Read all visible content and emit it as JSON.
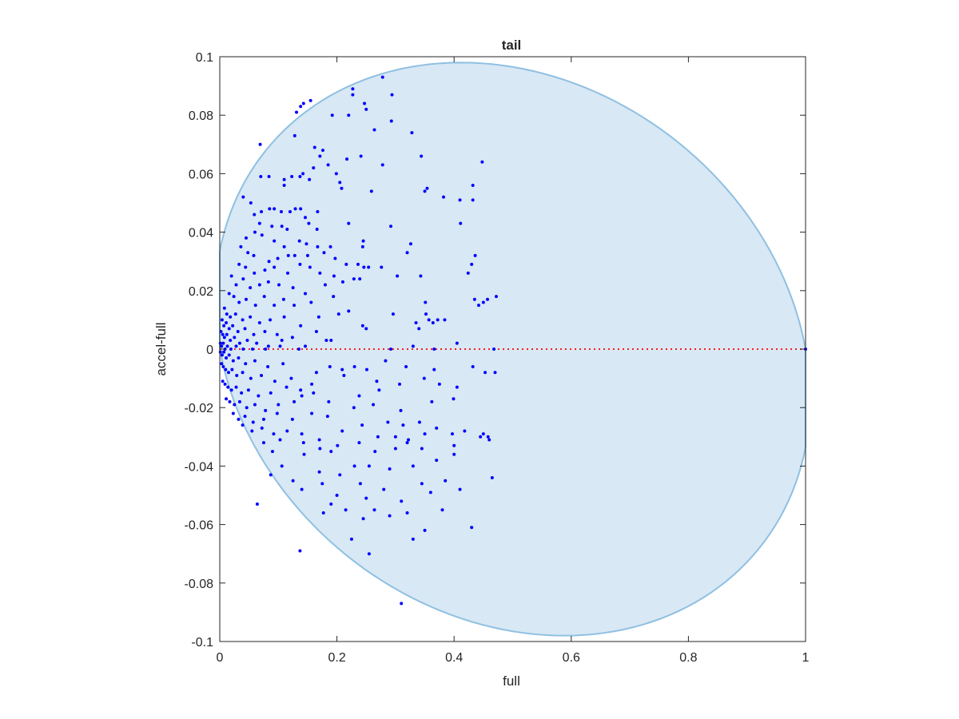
{
  "chart_data": {
    "type": "scatter",
    "title": "tail",
    "xlabel": "full",
    "ylabel": "accel-full",
    "xlim": [
      0,
      1
    ],
    "ylim": [
      -0.1,
      0.1
    ],
    "xticks": [
      0,
      0.2,
      0.4,
      0.6,
      0.8,
      1
    ],
    "xtick_labels": [
      "0",
      "0.2",
      "0.4",
      "0.6",
      "0.8",
      "1"
    ],
    "yticks": [
      -0.1,
      -0.08,
      -0.06,
      -0.04,
      -0.02,
      0,
      0.02,
      0.04,
      0.06,
      0.08,
      0.1
    ],
    "ytick_labels": [
      "-0.1",
      "-0.08",
      "-0.06",
      "-0.04",
      "-0.02",
      "0",
      "0.02",
      "0.04",
      "0.06",
      "0.08",
      "0.1"
    ],
    "grid": false,
    "colors": {
      "points": "#0000ff",
      "region_fill": "#d8e8f4",
      "region_edge": "#8fc0e2",
      "zero_line": "#ff0000",
      "axis": "#262626"
    },
    "region": {
      "shape": "ellipse",
      "x_range": [
        0,
        1
      ],
      "y_range": [
        -0.098,
        0.098
      ],
      "tilt_deg": -8
    },
    "zero_line": {
      "y": 0,
      "x_range": [
        0,
        1
      ],
      "style": "dotted"
    },
    "points": [
      [
        0.278,
        0.093
      ],
      [
        0.227,
        0.089
      ],
      [
        0.227,
        0.087
      ],
      [
        0.294,
        0.087
      ],
      [
        0.138,
        0.083
      ],
      [
        0.131,
        0.081
      ],
      [
        0.143,
        0.084
      ],
      [
        0.155,
        0.085
      ],
      [
        0.247,
        0.084
      ],
      [
        0.25,
        0.082
      ],
      [
        0.192,
        0.08
      ],
      [
        0.22,
        0.08
      ],
      [
        0.293,
        0.078
      ],
      [
        0.264,
        0.075
      ],
      [
        0.328,
        0.074
      ],
      [
        0.128,
        0.073
      ],
      [
        0.069,
        0.07
      ],
      [
        0.162,
        0.069
      ],
      [
        0.176,
        0.068
      ],
      [
        0.241,
        0.066
      ],
      [
        0.171,
        0.066
      ],
      [
        0.217,
        0.065
      ],
      [
        0.344,
        0.066
      ],
      [
        0.448,
        0.064
      ],
      [
        0.16,
        0.062
      ],
      [
        0.278,
        0.063
      ],
      [
        0.07,
        0.059
      ],
      [
        0.084,
        0.059
      ],
      [
        0.11,
        0.058
      ],
      [
        0.123,
        0.059
      ],
      [
        0.185,
        0.063
      ],
      [
        0.199,
        0.06
      ],
      [
        0.11,
        0.056
      ],
      [
        0.153,
        0.058
      ],
      [
        0.142,
        0.06
      ],
      [
        0.137,
        0.059
      ],
      [
        0.205,
        0.057
      ],
      [
        0.208,
        0.055
      ],
      [
        0.259,
        0.054
      ],
      [
        0.354,
        0.055
      ],
      [
        0.35,
        0.054
      ],
      [
        0.432,
        0.056
      ],
      [
        0.382,
        0.052
      ],
      [
        0.41,
        0.051
      ],
      [
        0.432,
        0.051
      ],
      [
        0.04,
        0.052
      ],
      [
        0.053,
        0.05
      ],
      [
        0.071,
        0.047
      ],
      [
        0.085,
        0.048
      ],
      [
        0.093,
        0.048
      ],
      [
        0.105,
        0.047
      ],
      [
        0.12,
        0.047
      ],
      [
        0.129,
        0.048
      ],
      [
        0.138,
        0.048
      ],
      [
        0.167,
        0.047
      ],
      [
        0.22,
        0.043
      ],
      [
        0.059,
        0.046
      ],
      [
        0.068,
        0.043
      ],
      [
        0.089,
        0.042
      ],
      [
        0.106,
        0.042
      ],
      [
        0.115,
        0.041
      ],
      [
        0.146,
        0.045
      ],
      [
        0.152,
        0.043
      ],
      [
        0.166,
        0.041
      ],
      [
        0.292,
        0.042
      ],
      [
        0.411,
        0.043
      ],
      [
        0.045,
        0.038
      ],
      [
        0.06,
        0.04
      ],
      [
        0.072,
        0.039
      ],
      [
        0.093,
        0.037
      ],
      [
        0.11,
        0.035
      ],
      [
        0.136,
        0.037
      ],
      [
        0.148,
        0.036
      ],
      [
        0.167,
        0.035
      ],
      [
        0.189,
        0.035
      ],
      [
        0.245,
        0.037
      ],
      [
        0.244,
        0.035
      ],
      [
        0.326,
        0.036
      ],
      [
        0.036,
        0.035
      ],
      [
        0.048,
        0.033
      ],
      [
        0.058,
        0.032
      ],
      [
        0.084,
        0.03
      ],
      [
        0.099,
        0.031
      ],
      [
        0.117,
        0.032
      ],
      [
        0.128,
        0.032
      ],
      [
        0.15,
        0.032
      ],
      [
        0.178,
        0.033
      ],
      [
        0.197,
        0.031
      ],
      [
        0.216,
        0.029
      ],
      [
        0.236,
        0.029
      ],
      [
        0.246,
        0.028
      ],
      [
        0.254,
        0.028
      ],
      [
        0.32,
        0.033
      ],
      [
        0.436,
        0.032
      ],
      [
        0.033,
        0.029
      ],
      [
        0.044,
        0.028
      ],
      [
        0.059,
        0.026
      ],
      [
        0.077,
        0.027
      ],
      [
        0.093,
        0.028
      ],
      [
        0.116,
        0.026
      ],
      [
        0.137,
        0.029
      ],
      [
        0.154,
        0.028
      ],
      [
        0.171,
        0.026
      ],
      [
        0.195,
        0.025
      ],
      [
        0.239,
        0.024
      ],
      [
        0.276,
        0.028
      ],
      [
        0.343,
        0.025
      ],
      [
        0.43,
        0.029
      ],
      [
        0.424,
        0.026
      ],
      [
        0.02,
        0.025
      ],
      [
        0.028,
        0.022
      ],
      [
        0.04,
        0.024
      ],
      [
        0.052,
        0.021
      ],
      [
        0.068,
        0.022
      ],
      [
        0.083,
        0.023
      ],
      [
        0.101,
        0.022
      ],
      [
        0.125,
        0.021
      ],
      [
        0.146,
        0.019
      ],
      [
        0.18,
        0.022
      ],
      [
        0.21,
        0.023
      ],
      [
        0.229,
        0.024
      ],
      [
        0.303,
        0.025
      ],
      [
        0.016,
        0.019
      ],
      [
        0.024,
        0.018
      ],
      [
        0.033,
        0.016
      ],
      [
        0.045,
        0.017
      ],
      [
        0.061,
        0.015
      ],
      [
        0.076,
        0.018
      ],
      [
        0.093,
        0.015
      ],
      [
        0.109,
        0.017
      ],
      [
        0.127,
        0.015
      ],
      [
        0.156,
        0.016
      ],
      [
        0.194,
        0.018
      ],
      [
        0.22,
        0.013
      ],
      [
        0.351,
        0.016
      ],
      [
        0.435,
        0.017
      ],
      [
        0.442,
        0.015
      ],
      [
        0.45,
        0.016
      ],
      [
        0.457,
        0.017
      ],
      [
        0.472,
        0.018
      ],
      [
        0.008,
        0.014
      ],
      [
        0.012,
        0.012
      ],
      [
        0.018,
        0.011
      ],
      [
        0.027,
        0.012
      ],
      [
        0.039,
        0.01
      ],
      [
        0.052,
        0.011
      ],
      [
        0.068,
        0.009
      ],
      [
        0.086,
        0.01
      ],
      [
        0.11,
        0.011
      ],
      [
        0.138,
        0.008
      ],
      [
        0.169,
        0.011
      ],
      [
        0.203,
        0.012
      ],
      [
        0.296,
        0.012
      ],
      [
        0.352,
        0.012
      ],
      [
        0.004,
        0.01
      ],
      [
        0.007,
        0.008
      ],
      [
        0.011,
        0.009
      ],
      [
        0.016,
        0.007
      ],
      [
        0.022,
        0.008
      ],
      [
        0.031,
        0.006
      ],
      [
        0.043,
        0.007
      ],
      [
        0.058,
        0.005
      ],
      [
        0.077,
        0.006
      ],
      [
        0.098,
        0.005
      ],
      [
        0.124,
        0.004
      ],
      [
        0.165,
        0.006
      ],
      [
        0.244,
        0.008
      ],
      [
        0.25,
        0.007
      ],
      [
        0.335,
        0.009
      ],
      [
        0.34,
        0.007
      ],
      [
        0.357,
        0.01
      ],
      [
        0.364,
        0.009
      ],
      [
        0.372,
        0.01
      ],
      [
        0.384,
        0.01
      ],
      [
        0.002,
        0.006
      ],
      [
        0.005,
        0.005
      ],
      [
        0.008,
        0.004
      ],
      [
        0.012,
        0.005
      ],
      [
        0.018,
        0.003
      ],
      [
        0.025,
        0.004
      ],
      [
        0.034,
        0.002
      ],
      [
        0.047,
        0.003
      ],
      [
        0.063,
        0.002
      ],
      [
        0.083,
        0.001
      ],
      [
        0.106,
        0.003
      ],
      [
        0.146,
        0.001
      ],
      [
        0.182,
        0.003
      ],
      [
        0.19,
        0.003
      ],
      [
        0.001,
        0.002
      ],
      [
        0.003,
        0.001
      ],
      [
        0.006,
        0.002
      ],
      [
        0.009,
        0.0
      ],
      [
        0.013,
        0.001
      ],
      [
        0.019,
        0.0
      ],
      [
        0.028,
        0.001
      ],
      [
        0.04,
        0.0
      ],
      [
        0.056,
        0.0
      ],
      [
        0.078,
        0.0
      ],
      [
        0.103,
        0.001
      ],
      [
        0.135,
        0.0
      ],
      [
        0.292,
        0.0
      ],
      [
        0.33,
        0.001
      ],
      [
        0.366,
        0.0
      ],
      [
        0.405,
        0.002
      ],
      [
        0.468,
        0.0
      ],
      [
        1.0,
        0.0
      ],
      [
        0.001,
        -0.001
      ],
      [
        0.004,
        -0.002
      ],
      [
        0.007,
        -0.001
      ],
      [
        0.011,
        -0.003
      ],
      [
        0.016,
        -0.002
      ],
      [
        0.023,
        -0.004
      ],
      [
        0.032,
        -0.003
      ],
      [
        0.044,
        -0.005
      ],
      [
        0.06,
        -0.004
      ],
      [
        0.082,
        -0.006
      ],
      [
        0.108,
        -0.005
      ],
      [
        0.003,
        -0.005
      ],
      [
        0.006,
        -0.006
      ],
      [
        0.01,
        -0.007
      ],
      [
        0.015,
        -0.008
      ],
      [
        0.021,
        -0.007
      ],
      [
        0.029,
        -0.009
      ],
      [
        0.039,
        -0.008
      ],
      [
        0.053,
        -0.01
      ],
      [
        0.071,
        -0.009
      ],
      [
        0.094,
        -0.011
      ],
      [
        0.122,
        -0.01
      ],
      [
        0.165,
        -0.008
      ],
      [
        0.188,
        -0.006
      ],
      [
        0.209,
        -0.007
      ],
      [
        0.23,
        -0.006
      ],
      [
        0.251,
        -0.007
      ],
      [
        0.283,
        -0.004
      ],
      [
        0.318,
        -0.006
      ],
      [
        0.366,
        -0.007
      ],
      [
        0.432,
        -0.006
      ],
      [
        0.453,
        -0.008
      ],
      [
        0.47,
        -0.008
      ],
      [
        0.005,
        -0.011
      ],
      [
        0.009,
        -0.012
      ],
      [
        0.014,
        -0.013
      ],
      [
        0.02,
        -0.014
      ],
      [
        0.028,
        -0.013
      ],
      [
        0.037,
        -0.015
      ],
      [
        0.049,
        -0.014
      ],
      [
        0.066,
        -0.016
      ],
      [
        0.087,
        -0.015
      ],
      [
        0.114,
        -0.013
      ],
      [
        0.138,
        -0.014
      ],
      [
        0.157,
        -0.012
      ],
      [
        0.212,
        -0.009
      ],
      [
        0.268,
        -0.011
      ],
      [
        0.307,
        -0.012
      ],
      [
        0.349,
        -0.01
      ],
      [
        0.375,
        -0.012
      ],
      [
        0.405,
        -0.013
      ],
      [
        0.011,
        -0.017
      ],
      [
        0.017,
        -0.018
      ],
      [
        0.025,
        -0.019
      ],
      [
        0.034,
        -0.018
      ],
      [
        0.046,
        -0.02
      ],
      [
        0.06,
        -0.019
      ],
      [
        0.078,
        -0.021
      ],
      [
        0.1,
        -0.019
      ],
      [
        0.127,
        -0.018
      ],
      [
        0.14,
        -0.016
      ],
      [
        0.16,
        -0.015
      ],
      [
        0.186,
        -0.018
      ],
      [
        0.238,
        -0.016
      ],
      [
        0.272,
        -0.014
      ],
      [
        0.362,
        -0.018
      ],
      [
        0.399,
        -0.017
      ],
      [
        0.023,
        -0.022
      ],
      [
        0.032,
        -0.024
      ],
      [
        0.043,
        -0.023
      ],
      [
        0.057,
        -0.025
      ],
      [
        0.075,
        -0.024
      ],
      [
        0.098,
        -0.022
      ],
      [
        0.124,
        -0.024
      ],
      [
        0.157,
        -0.022
      ],
      [
        0.184,
        -0.023
      ],
      [
        0.229,
        -0.02
      ],
      [
        0.262,
        -0.019
      ],
      [
        0.309,
        -0.021
      ],
      [
        0.039,
        -0.026
      ],
      [
        0.055,
        -0.028
      ],
      [
        0.072,
        -0.027
      ],
      [
        0.092,
        -0.029
      ],
      [
        0.115,
        -0.028
      ],
      [
        0.14,
        -0.029
      ],
      [
        0.17,
        -0.031
      ],
      [
        0.209,
        -0.028
      ],
      [
        0.243,
        -0.026
      ],
      [
        0.287,
        -0.025
      ],
      [
        0.313,
        -0.026
      ],
      [
        0.341,
        -0.025
      ],
      [
        0.37,
        -0.027
      ],
      [
        0.418,
        -0.028
      ],
      [
        0.35,
        -0.029
      ],
      [
        0.075,
        -0.032
      ],
      [
        0.103,
        -0.031
      ],
      [
        0.143,
        -0.032
      ],
      [
        0.171,
        -0.034
      ],
      [
        0.201,
        -0.033
      ],
      [
        0.238,
        -0.032
      ],
      [
        0.27,
        -0.03
      ],
      [
        0.3,
        -0.03
      ],
      [
        0.322,
        -0.031
      ],
      [
        0.397,
        -0.029
      ],
      [
        0.458,
        -0.03
      ],
      [
        0.46,
        -0.031
      ],
      [
        0.09,
        -0.035
      ],
      [
        0.144,
        -0.036
      ],
      [
        0.19,
        -0.035
      ],
      [
        0.265,
        -0.035
      ],
      [
        0.3,
        -0.034
      ],
      [
        0.32,
        -0.032
      ],
      [
        0.345,
        -0.034
      ],
      [
        0.4,
        -0.033
      ],
      [
        0.45,
        -0.029
      ],
      [
        0.106,
        -0.04
      ],
      [
        0.17,
        -0.042
      ],
      [
        0.205,
        -0.043
      ],
      [
        0.23,
        -0.04
      ],
      [
        0.255,
        -0.04
      ],
      [
        0.29,
        -0.041
      ],
      [
        0.33,
        -0.04
      ],
      [
        0.37,
        -0.038
      ],
      [
        0.4,
        -0.036
      ],
      [
        0.445,
        -0.03
      ],
      [
        0.087,
        -0.043
      ],
      [
        0.125,
        -0.045
      ],
      [
        0.175,
        -0.046
      ],
      [
        0.24,
        -0.046
      ],
      [
        0.28,
        -0.048
      ],
      [
        0.345,
        -0.046
      ],
      [
        0.385,
        -0.045
      ],
      [
        0.465,
        -0.044
      ],
      [
        0.14,
        -0.048
      ],
      [
        0.2,
        -0.05
      ],
      [
        0.25,
        -0.051
      ],
      [
        0.31,
        -0.052
      ],
      [
        0.36,
        -0.049
      ],
      [
        0.41,
        -0.048
      ],
      [
        0.064,
        -0.053
      ],
      [
        0.19,
        -0.053
      ],
      [
        0.215,
        -0.055
      ],
      [
        0.264,
        -0.055
      ],
      [
        0.32,
        -0.056
      ],
      [
        0.38,
        -0.055
      ],
      [
        0.177,
        -0.056
      ],
      [
        0.245,
        -0.058
      ],
      [
        0.29,
        -0.057
      ],
      [
        0.35,
        -0.062
      ],
      [
        0.43,
        -0.061
      ],
      [
        0.225,
        -0.065
      ],
      [
        0.33,
        -0.065
      ],
      [
        0.255,
        -0.07
      ],
      [
        0.137,
        -0.069
      ],
      [
        0.31,
        -0.087
      ]
    ]
  }
}
